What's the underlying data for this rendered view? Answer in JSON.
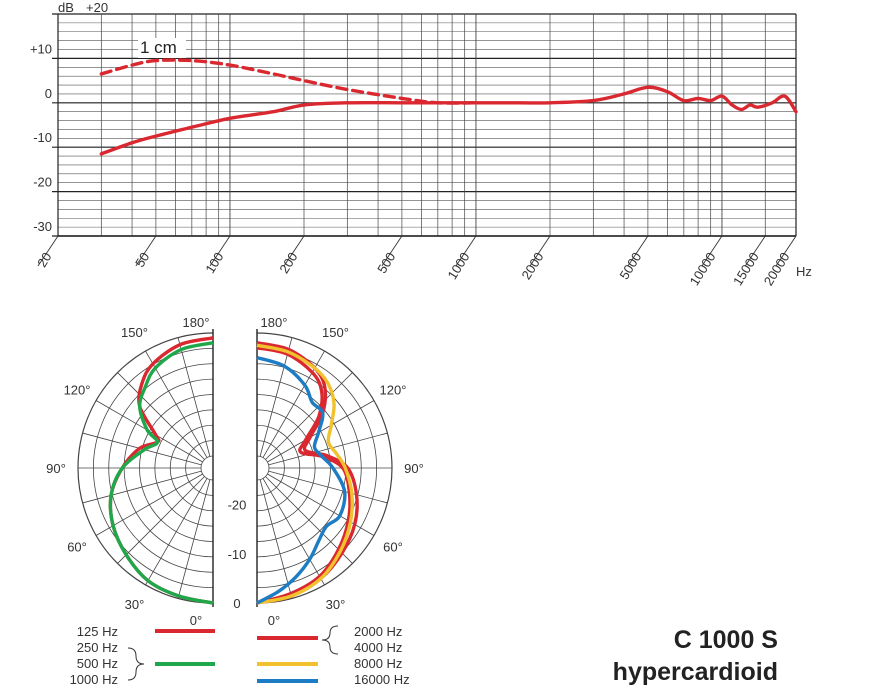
{
  "chart_data": [
    {
      "type": "line",
      "title": "",
      "xlabel": "Hz",
      "ylabel": "dB",
      "x_scale": "log",
      "xlim": [
        20,
        20000
      ],
      "ylim": [
        -30,
        20
      ],
      "grid": true,
      "y_ticks": [
        "+20",
        "+10",
        "0",
        "-10",
        "-20",
        "-30"
      ],
      "y_tick_values": [
        20,
        10,
        0,
        -10,
        -20,
        -30
      ],
      "x_ticks": [
        "20",
        "50",
        "100",
        "200",
        "500",
        "1000",
        "2000",
        "5000",
        "10000",
        "15000",
        "20000"
      ],
      "x_tick_values": [
        20,
        50,
        100,
        200,
        500,
        1000,
        2000,
        5000,
        10000,
        15000,
        20000
      ],
      "annotation": "1 cm",
      "series": [
        {
          "name": "",
          "style": "solid",
          "color": "#d9282f",
          "x": [
            30,
            40,
            50,
            70,
            100,
            150,
            200,
            300,
            500,
            700,
            1000,
            1500,
            2000,
            3000,
            4000,
            5000,
            6000,
            7000,
            8000,
            9000,
            10000,
            11000,
            12000,
            13000,
            14000,
            16000,
            18000,
            20000
          ],
          "y": [
            -11.5,
            -9,
            -7.5,
            -5.5,
            -3.5,
            -2,
            -0.5,
            0,
            0,
            0,
            0,
            0,
            0,
            0.5,
            2,
            3.5,
            2.5,
            0.5,
            1,
            0.5,
            1.5,
            -0.5,
            -1.5,
            -0.5,
            -1,
            0,
            1.5,
            -2
          ]
        },
        {
          "name": "1 cm",
          "style": "dashed",
          "color": "#d9282f",
          "x": [
            30,
            40,
            50,
            70,
            100,
            150,
            200,
            300,
            500,
            700,
            1000
          ],
          "y": [
            6.5,
            8.5,
            9.5,
            9.5,
            8.5,
            6.5,
            5,
            3,
            1,
            0,
            0
          ]
        }
      ]
    },
    {
      "type": "polar",
      "title": "",
      "angle_labels_left": [
        "180°",
        "150°",
        "120°",
        "90°",
        "60°",
        "30°",
        "0°"
      ],
      "angle_labels_right": [
        "180°",
        "150°",
        "120°",
        "90°",
        "60°",
        "30°",
        "0°"
      ],
      "radial_labels": [
        "-20",
        "-10",
        "0"
      ],
      "radial_values": [
        -20,
        -10,
        0
      ],
      "rlim": [
        -25,
        0
      ],
      "left_legend": {
        "group1": [
          "125 Hz"
        ],
        "group2": [
          "250 Hz",
          "500 Hz",
          "1000 Hz"
        ]
      },
      "right_legend": [
        "2000 Hz",
        "4000 Hz",
        "8000 Hz",
        "16000 Hz"
      ],
      "series": [
        {
          "name": "125 Hz",
          "side": "left",
          "color": "#d9282f",
          "angles": [
            0,
            15,
            30,
            45,
            60,
            75,
            90,
            105,
            115,
            120,
            130,
            140,
            150,
            165,
            180
          ],
          "values": [
            0,
            -0.5,
            -1,
            -2.5,
            -4,
            -6,
            -9,
            -12,
            -15,
            -14,
            -8,
            -5,
            -3,
            -1.5,
            -1
          ]
        },
        {
          "name": "250 Hz / 500 Hz / 1000 Hz",
          "side": "left",
          "color": "#1fa84a",
          "angles": [
            0,
            15,
            30,
            45,
            60,
            75,
            90,
            105,
            115,
            120,
            130,
            140,
            150,
            165,
            180
          ],
          "values": [
            0,
            -0.5,
            -1,
            -2.5,
            -4,
            -6,
            -9,
            -13,
            -15,
            -12,
            -8,
            -6,
            -4,
            -2.5,
            -2
          ]
        },
        {
          "name": "2000 Hz",
          "side": "right",
          "color": "#d9282f",
          "angles": [
            0,
            15,
            30,
            45,
            60,
            75,
            90,
            100,
            110,
            120,
            130,
            140,
            150,
            165,
            180
          ],
          "values": [
            0,
            -0.5,
            -1.5,
            -3,
            -4.5,
            -6.5,
            -9,
            -13,
            -17,
            -15,
            -10,
            -6,
            -4,
            -2.5,
            -2
          ]
        },
        {
          "name": "4000 Hz",
          "side": "right",
          "color": "#d9282f",
          "angles": [
            0,
            15,
            30,
            45,
            60,
            75,
            90,
            100,
            110,
            120,
            130,
            140,
            150,
            165,
            180
          ],
          "values": [
            0,
            -1,
            -2,
            -4,
            -6,
            -8,
            -10,
            -14,
            -18,
            -16,
            -11,
            -7,
            -5,
            -3.5,
            -3
          ]
        },
        {
          "name": "8000 Hz",
          "side": "right",
          "color": "#f2c12e",
          "angles": [
            0,
            15,
            30,
            45,
            60,
            75,
            90,
            100,
            110,
            120,
            130,
            140,
            150,
            165,
            180
          ],
          "values": [
            0,
            -0.5,
            -1.5,
            -3.5,
            -5.5,
            -7.5,
            -9.5,
            -11,
            -12,
            -10,
            -7,
            -5,
            -4,
            -3,
            -2.5
          ]
        },
        {
          "name": "16000 Hz",
          "side": "right",
          "color": "#1c7cc4",
          "angles": [
            0,
            10,
            20,
            30,
            40,
            50,
            60,
            75,
            90,
            100,
            110,
            120,
            130,
            140,
            150,
            165,
            180
          ],
          "values": [
            0,
            -2,
            -4,
            -6,
            -8,
            -9,
            -8,
            -9,
            -12,
            -14,
            -15,
            -13,
            -10,
            -10,
            -8,
            -6,
            -5
          ]
        }
      ]
    }
  ],
  "product": {
    "model": "C 1000 S",
    "pattern": "hypercardioid"
  }
}
